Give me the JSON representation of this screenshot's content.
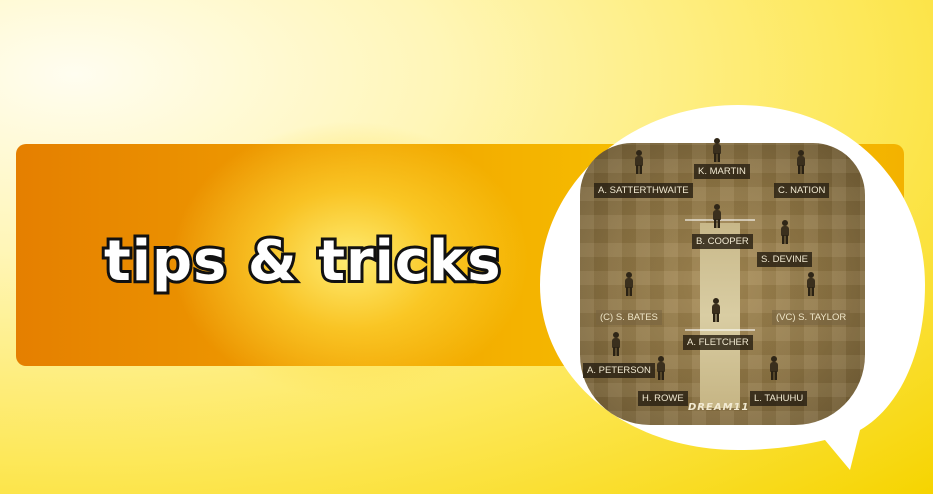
{
  "headline": "tips & tricks",
  "colors": {
    "background": "#fde85a",
    "banner_start": "#e57f00",
    "banner_end": "#f3b200",
    "ground": "#8d7443",
    "label_bg": "#282012",
    "label_text": "#f2ead2"
  },
  "field": {
    "brand": "DREAM11",
    "players": [
      {
        "name": "K. MARTIN"
      },
      {
        "name": "A. SATTERTHWAITE"
      },
      {
        "name": "C. NATION"
      },
      {
        "name": "B. COOPER"
      },
      {
        "name": "S. DEVINE"
      },
      {
        "name": "(C) S. BATES"
      },
      {
        "name": "(VC) S. TAYLOR"
      },
      {
        "name": "A. FLETCHER"
      },
      {
        "name": "A. PETERSON"
      },
      {
        "name": "H. ROWE"
      },
      {
        "name": "L. TAHUHU"
      }
    ]
  }
}
